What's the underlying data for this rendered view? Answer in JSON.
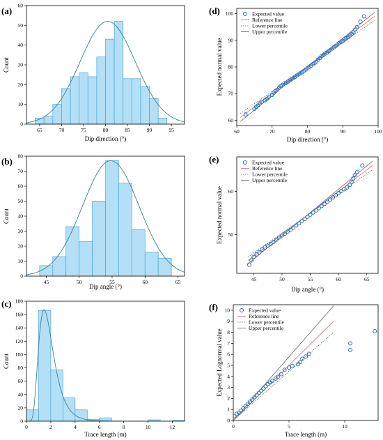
{
  "chart_data": [
    {
      "panel": "(a)",
      "type": "bar",
      "xlabel": "Dip direction (°)",
      "ylabel": "Count",
      "xlim": [
        62,
        98
      ],
      "ylim": [
        0,
        60
      ],
      "xticks": [
        65,
        70,
        75,
        80,
        85,
        90,
        95
      ],
      "yticks": [
        0,
        10,
        20,
        30,
        40,
        50,
        60
      ],
      "bin_edges": [
        64,
        66,
        68,
        70,
        72,
        74,
        76,
        78,
        80,
        82,
        84,
        86,
        88,
        90,
        92,
        94
      ],
      "counts": [
        3,
        4,
        10,
        18,
        24,
        26,
        24,
        34,
        43,
        52,
        23,
        23,
        19,
        13,
        3
      ],
      "curve": {
        "type": "normal",
        "mean": 80.5,
        "sd": 6.3,
        "peak": 52
      },
      "colors": {
        "bar_fill": "#b3e0f7",
        "bar_edge": "#4aa3d8",
        "curve": "#4a8a9a"
      }
    },
    {
      "panel": "(b)",
      "type": "bar",
      "xlabel": "Dip angle (°)",
      "ylabel": "Count",
      "xlim": [
        42,
        66
      ],
      "ylim": [
        0,
        80
      ],
      "xticks": [
        45,
        50,
        55,
        60,
        65
      ],
      "yticks": [
        0,
        10,
        20,
        30,
        40,
        50,
        60,
        70,
        80
      ],
      "bin_edges": [
        44,
        46,
        48,
        50,
        52,
        54,
        56,
        58,
        60,
        62,
        64
      ],
      "counts": [
        7,
        13,
        33,
        23,
        50,
        77,
        62,
        31,
        16,
        12
      ],
      "curve": {
        "type": "normal",
        "mean": 54.8,
        "sd": 4.3,
        "peak": 77
      },
      "colors": {
        "bar_fill": "#b3e0f7",
        "bar_edge": "#4aa3d8",
        "curve": "#4a8a9a"
      }
    },
    {
      "panel": "(c)",
      "type": "bar",
      "xlabel": "Trace length (m)",
      "ylabel": "Count",
      "xlim": [
        0,
        13
      ],
      "ylim": [
        0,
        180
      ],
      "xticks": [
        0,
        2,
        4,
        6,
        8,
        10,
        12
      ],
      "yticks": [
        0,
        20,
        40,
        60,
        80,
        100,
        120,
        140,
        160,
        180
      ],
      "bin_edges": [
        0,
        1,
        2,
        3,
        4,
        5,
        6,
        7,
        8,
        9,
        10,
        11,
        12,
        13
      ],
      "counts": [
        17,
        166,
        77,
        35,
        17,
        3,
        5,
        0,
        0,
        0,
        2,
        0,
        1
      ],
      "curve": {
        "type": "lognormal",
        "mu": 0.55,
        "sigma": 0.42,
        "peak": 167
      },
      "colors": {
        "bar_fill": "#b3e0f7",
        "bar_edge": "#4aa3d8",
        "curve": "#4a8a9a"
      }
    },
    {
      "panel": "(d)",
      "type": "scatter",
      "xlabel": "Dip direction (°)",
      "ylabel": "Expected normal value",
      "xlim": [
        60,
        100
      ],
      "ylim": [
        58,
        102
      ],
      "xticks": [
        60,
        70,
        80,
        90,
        100
      ],
      "yticks": [
        60,
        70,
        80,
        90,
        100
      ],
      "legend": [
        "Expected value",
        "Reference line",
        "Lower percentile",
        "Upper percentile"
      ],
      "legend_position": "top-left",
      "lines": {
        "reference": [
          [
            61,
            61
          ],
          [
            99,
            99
          ]
        ],
        "lower": [
          [
            61,
            62.5
          ],
          [
            99,
            97.5
          ]
        ],
        "upper": [
          [
            61,
            59.5
          ],
          [
            99,
            100.5
          ]
        ]
      },
      "points": [
        [
          62.5,
          62.2
        ],
        [
          65,
          64.3
        ],
        [
          65.5,
          65
        ],
        [
          66,
          65.5
        ],
        [
          66.5,
          66.3
        ],
        [
          67,
          66.8
        ],
        [
          68,
          67.5
        ],
        [
          68.5,
          68
        ],
        [
          69,
          68.5
        ],
        [
          70,
          69.5
        ],
        [
          70.5,
          70.3
        ],
        [
          71,
          71
        ],
        [
          71.5,
          71.5
        ],
        [
          72,
          72.2
        ],
        [
          72.5,
          72.8
        ],
        [
          73,
          73.3
        ],
        [
          73.5,
          73.8
        ],
        [
          74,
          74
        ],
        [
          74.5,
          74.5
        ],
        [
          75,
          75
        ],
        [
          75.5,
          75.4
        ],
        [
          76,
          75.8
        ],
        [
          76.5,
          76.3
        ],
        [
          77,
          76.8
        ],
        [
          77.5,
          77.2
        ],
        [
          78,
          77.6
        ],
        [
          78.5,
          78
        ],
        [
          79,
          78.5
        ],
        [
          79.5,
          79
        ],
        [
          80,
          79.5
        ],
        [
          80.5,
          80
        ],
        [
          81,
          80.5
        ],
        [
          81.5,
          81
        ],
        [
          82,
          81.5
        ],
        [
          82.5,
          82
        ],
        [
          83,
          82.7
        ],
        [
          83.5,
          83.3
        ],
        [
          84,
          84
        ],
        [
          84.5,
          84.5
        ],
        [
          85,
          85
        ],
        [
          85.5,
          85.4
        ],
        [
          86,
          85.9
        ],
        [
          86.5,
          86.4
        ],
        [
          87,
          86.9
        ],
        [
          87.5,
          87.4
        ],
        [
          88,
          87.9
        ],
        [
          88.5,
          88.4
        ],
        [
          89,
          89
        ],
        [
          89.5,
          89.4
        ],
        [
          90,
          89.8
        ],
        [
          90.5,
          90.3
        ],
        [
          91,
          90.8
        ],
        [
          91.5,
          91.2
        ],
        [
          92,
          91.8
        ],
        [
          92.5,
          92.3
        ],
        [
          93,
          93
        ],
        [
          93.5,
          94
        ],
        [
          94,
          95
        ],
        [
          95,
          97
        ],
        [
          96,
          99
        ]
      ],
      "colors": {
        "marker": "#2a6fc0",
        "reference": "#d96a6a",
        "lower": "#3d7a3d",
        "upper": "#666666"
      }
    },
    {
      "panel": "(e)",
      "type": "scatter",
      "xlabel": "Dip angle (°)",
      "ylabel": "Expected normal value",
      "xlim": [
        42,
        67
      ],
      "ylim": [
        41,
        68
      ],
      "xticks": [
        45,
        50,
        55,
        60,
        65
      ],
      "yticks": [
        50,
        60
      ],
      "legend": [
        "Expected value",
        "Reference line",
        "Lower percentile",
        "Upper percentile"
      ],
      "legend_position": "top-left",
      "lines": {
        "reference": [
          [
            44,
            44
          ],
          [
            66,
            66
          ]
        ],
        "lower": [
          [
            44,
            44.8
          ],
          [
            66,
            65
          ]
        ],
        "upper": [
          [
            44,
            43.2
          ],
          [
            66,
            67
          ]
        ]
      },
      "points": [
        [
          44.2,
          43
        ],
        [
          44.6,
          44
        ],
        [
          45,
          44.8
        ],
        [
          45.5,
          45.4
        ],
        [
          46,
          45.9
        ],
        [
          46.5,
          46.5
        ],
        [
          47,
          47
        ],
        [
          47.5,
          47.4
        ],
        [
          48,
          47.8
        ],
        [
          48.5,
          48.3
        ],
        [
          49,
          48.8
        ],
        [
          49.5,
          49.3
        ],
        [
          50,
          49.8
        ],
        [
          50.5,
          50.2
        ],
        [
          51,
          50.7
        ],
        [
          51.5,
          51.1
        ],
        [
          52,
          51.6
        ],
        [
          52.5,
          52.1
        ],
        [
          53,
          52.6
        ],
        [
          53.5,
          53.1
        ],
        [
          54,
          53.6
        ],
        [
          54.5,
          54.1
        ],
        [
          55,
          54.6
        ],
        [
          55.5,
          55.1
        ],
        [
          56,
          55.6
        ],
        [
          56.5,
          56.1
        ],
        [
          57,
          56.6
        ],
        [
          57.5,
          57.1
        ],
        [
          58,
          57.6
        ],
        [
          58.5,
          58.1
        ],
        [
          59,
          58.6
        ],
        [
          59.5,
          59.1
        ],
        [
          60,
          59.6
        ],
        [
          60.5,
          60.1
        ],
        [
          61,
          60.5
        ],
        [
          61.5,
          60.9
        ],
        [
          62,
          61.5
        ],
        [
          62.3,
          62.2
        ],
        [
          62.6,
          63
        ],
        [
          62.9,
          63.8
        ],
        [
          63.3,
          64.5
        ],
        [
          64.2,
          66
        ]
      ],
      "colors": {
        "marker": "#2a6fc0",
        "reference": "#d96a6a",
        "lower": "#3d7a3d",
        "upper": "#666666"
      }
    },
    {
      "panel": "(f)",
      "type": "scatter",
      "xlabel": "Trace length (m)",
      "ylabel": "Expected Lognormal value",
      "xlim": [
        0,
        13
      ],
      "ylim": [
        0,
        10.5
      ],
      "xticks": [
        0,
        5,
        10
      ],
      "yticks": [
        0,
        1,
        2,
        3,
        4,
        5,
        6,
        7,
        8,
        9,
        10
      ],
      "legend": [
        "Expected value",
        "Reference line",
        "Lower percentile",
        "Upper percentile"
      ],
      "legend_position": "top-left",
      "lines": {
        "reference": [
          [
            0,
            0
          ],
          [
            9,
            9
          ]
        ],
        "lower": [
          [
            0,
            0
          ],
          [
            9,
            8
          ]
        ],
        "upper": [
          [
            0,
            0
          ],
          [
            9,
            10.4
          ]
        ]
      },
      "points": [
        [
          0.1,
          0.4
        ],
        [
          0.3,
          0.6
        ],
        [
          0.5,
          0.7
        ],
        [
          0.7,
          0.9
        ],
        [
          0.9,
          1.1
        ],
        [
          1.1,
          1.3
        ],
        [
          1.3,
          1.5
        ],
        [
          1.5,
          1.7
        ],
        [
          1.7,
          1.9
        ],
        [
          1.9,
          2.1
        ],
        [
          2.1,
          2.3
        ],
        [
          2.3,
          2.5
        ],
        [
          2.5,
          2.7
        ],
        [
          2.7,
          2.9
        ],
        [
          2.9,
          3.1
        ],
        [
          3.1,
          3.3
        ],
        [
          3.3,
          3.45
        ],
        [
          3.5,
          3.6
        ],
        [
          3.8,
          3.8
        ],
        [
          4,
          3.95
        ],
        [
          4.3,
          4.2
        ],
        [
          4.6,
          4.6
        ],
        [
          5,
          4.8
        ],
        [
          5.3,
          4.95
        ],
        [
          5.8,
          5.1
        ],
        [
          6,
          5.3
        ],
        [
          6.2,
          5.6
        ],
        [
          6.5,
          5.8
        ],
        [
          6.8,
          6.05
        ],
        [
          10.5,
          6.4
        ],
        [
          10.5,
          7
        ],
        [
          12.7,
          8.1
        ]
      ],
      "colors": {
        "marker": "#2a6fc0",
        "reference": "#d96a6a",
        "lower": "#3d7a3d",
        "upper": "#666666"
      }
    }
  ]
}
